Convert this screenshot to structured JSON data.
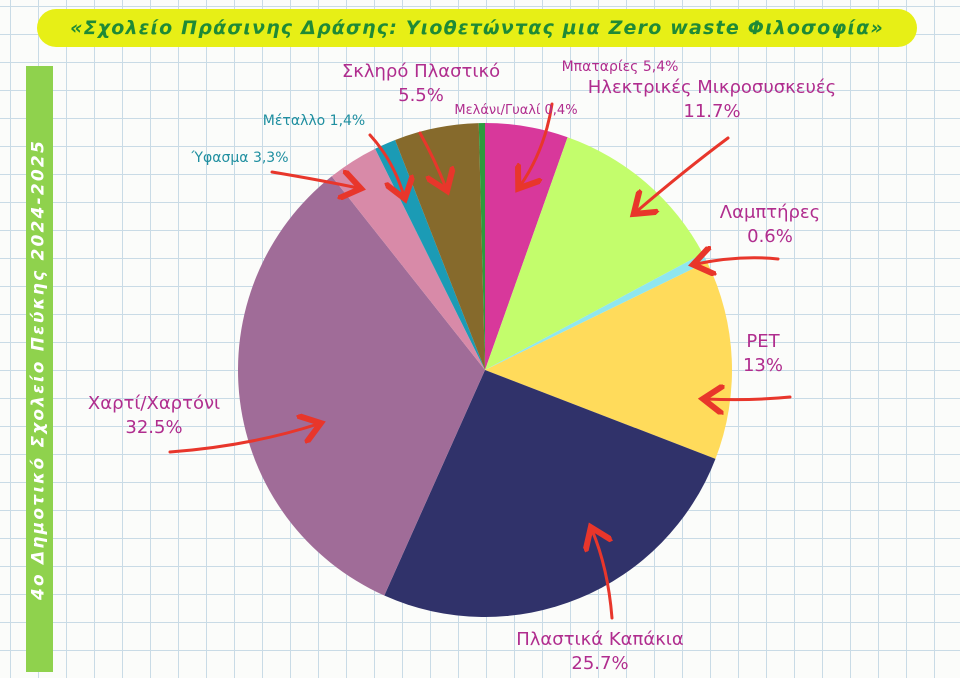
{
  "title": "«Σχολείο Πράσινης Δράσης: Υιοθετώντας μια Zero waste Φιλοσοφία»",
  "side_label": "4ο Δημοτικό Σχολείο Πεύκης 2024-2025",
  "chart_data": {
    "type": "pie",
    "title": "«Σχολείο Πράσινης Δράσης: Υιοθετώντας μια Zero waste Φιλοσοφία»",
    "slices": [
      {
        "name": "Μπαταρίες",
        "value": 5.4,
        "label_lines": [
          "Μπαταρίες 5,4%"
        ],
        "color": "#d8389b"
      },
      {
        "name": "Ηλεκτρικές Μικροσυσκευές",
        "value": 11.7,
        "label_lines": [
          "Ηλεκτρικές Μικροσυσκευές",
          "11.7%"
        ],
        "color": "#c3fd6c"
      },
      {
        "name": "Λαμπτήρες",
        "value": 0.6,
        "label_lines": [
          "Λαμπτήρες",
          "0.6%"
        ],
        "color": "#8fe6ef"
      },
      {
        "name": "PET",
        "value": 13,
        "label_lines": [
          "PET",
          "13%"
        ],
        "color": "#ffdb5b"
      },
      {
        "name": "Πλαστικά Καπάκια",
        "value": 25.7,
        "label_lines": [
          "Πλαστικά Καπάκια",
          "25.7%"
        ],
        "color": "#30326a"
      },
      {
        "name": "Χαρτί/Χαρτόνι",
        "value": 32.5,
        "label_lines": [
          "Χαρτί/Χαρτόνι",
          "32.5%"
        ],
        "color": "#a06c98"
      },
      {
        "name": "Ύφασμα",
        "value": 3.3,
        "label_lines": [
          "Ύφασμα 3,3%"
        ],
        "color": "#d88aa8"
      },
      {
        "name": "Μέταλλο",
        "value": 1.4,
        "label_lines": [
          "Μέταλλο 1,4%"
        ],
        "color": "#1b9bb5"
      },
      {
        "name": "Σκληρό Πλαστικό",
        "value": 5.5,
        "label_lines": [
          "Σκληρό Πλαστικό",
          "5.5%"
        ],
        "color": "#866a2c"
      },
      {
        "name": "Μελάνι/Γυαλί",
        "value": 0.4,
        "label_lines": [
          "Μελάνι/Γυαλί 0,4%"
        ],
        "color": "#2e9a3e"
      }
    ],
    "start": "12 o'clock",
    "direction": "clockwise",
    "label_color": "#b02d8e",
    "arrow_color": "#e8362b"
  }
}
